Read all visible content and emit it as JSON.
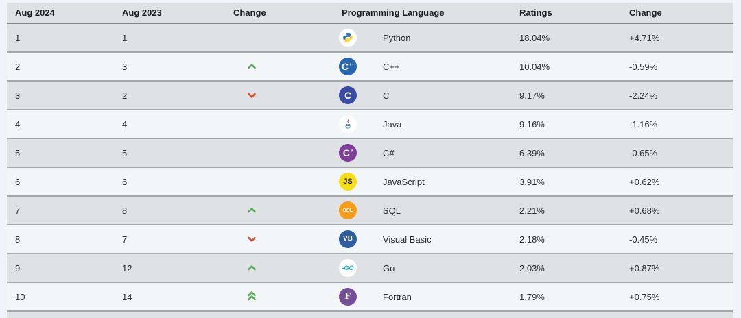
{
  "table": {
    "headers": [
      "Aug 2024",
      "Aug 2023",
      "Change",
      "Programming Language",
      "Ratings",
      "Change"
    ],
    "rows": [
      {
        "rank_2024": "1",
        "rank_2023": "1",
        "move": "none",
        "language": "Python",
        "rating": "18.04%",
        "change": "+4.71%",
        "icon": {
          "name": "python-icon",
          "type": "python",
          "bg": "#ffffff"
        }
      },
      {
        "rank_2024": "2",
        "rank_2023": "3",
        "move": "up",
        "language": "C++",
        "rating": "10.04%",
        "change": "-0.59%",
        "icon": {
          "name": "cpp-icon",
          "type": "text",
          "bg": "#2a66ad",
          "color": "#ffffff",
          "text": "C",
          "sup": "++",
          "size": 14
        }
      },
      {
        "rank_2024": "3",
        "rank_2023": "2",
        "move": "down",
        "language": "C",
        "rating": "9.17%",
        "change": "-2.24%",
        "icon": {
          "name": "c-icon",
          "type": "text",
          "bg": "#3b4aa5",
          "color": "#ffffff",
          "text": "C",
          "size": 14
        }
      },
      {
        "rank_2024": "4",
        "rank_2023": "4",
        "move": "none",
        "language": "Java",
        "rating": "9.16%",
        "change": "-1.16%",
        "icon": {
          "name": "java-icon",
          "type": "java",
          "bg": "#ffffff"
        }
      },
      {
        "rank_2024": "5",
        "rank_2023": "5",
        "move": "none",
        "language": "C#",
        "rating": "6.39%",
        "change": "-0.65%",
        "icon": {
          "name": "csharp-icon",
          "type": "text",
          "bg": "#7d3f98",
          "color": "#ffffff",
          "text": "C",
          "sup": "#",
          "size": 14
        }
      },
      {
        "rank_2024": "6",
        "rank_2023": "6",
        "move": "none",
        "language": "JavaScript",
        "rating": "3.91%",
        "change": "+0.62%",
        "icon": {
          "name": "javascript-icon",
          "type": "text",
          "bg": "#f5de19",
          "color": "#1a1a1a",
          "text": "JS",
          "size": 11
        }
      },
      {
        "rank_2024": "7",
        "rank_2023": "8",
        "move": "up",
        "language": "SQL",
        "rating": "2.21%",
        "change": "+0.68%",
        "icon": {
          "name": "sql-icon",
          "type": "text",
          "bg": "#f59d1a",
          "color": "#ffffff",
          "text": "SQL",
          "size": 7
        }
      },
      {
        "rank_2024": "8",
        "rank_2023": "7",
        "move": "down",
        "language": "Visual Basic",
        "rating": "2.18%",
        "change": "-0.45%",
        "icon": {
          "name": "visual-basic-icon",
          "type": "text",
          "bg": "#2f5e9e",
          "color": "#ffffff",
          "text": "VB",
          "size": 10
        }
      },
      {
        "rank_2024": "9",
        "rank_2023": "12",
        "move": "up",
        "language": "Go",
        "rating": "2.03%",
        "change": "+0.87%",
        "icon": {
          "name": "go-icon",
          "type": "text",
          "bg": "#ffffff",
          "color": "#00acd7",
          "text": "-GO",
          "size": 9,
          "italic": true
        }
      },
      {
        "rank_2024": "10",
        "rank_2023": "14",
        "move": "up2",
        "language": "Fortran",
        "rating": "1.79%",
        "change": "+0.75%",
        "icon": {
          "name": "fortran-icon",
          "type": "text",
          "bg": "#734f96",
          "color": "#ffffff",
          "text": "F",
          "serif": true,
          "size": 14
        }
      }
    ]
  },
  "colors": {
    "page_background": "#eef4f9",
    "header_background": "#dfe2e5",
    "row_shaded": "#dfe2e5",
    "row_light": "#f2f6f9",
    "up_arrow": "#57a957",
    "down_arrow": "#e04a26",
    "python_blue": "#3776ab",
    "python_yellow": "#ffd43b",
    "java_red": "#ea2d2e",
    "java_blue": "#5382a1"
  }
}
